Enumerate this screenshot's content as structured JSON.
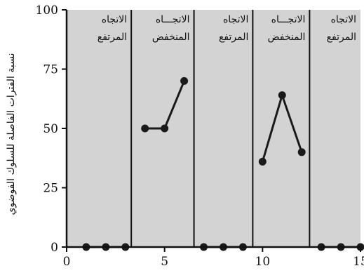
{
  "chart_data": {
    "type": "line",
    "ylabel": "نسبة الفترات الفاصلة للسلوك الفوضوي",
    "xlabel": "",
    "xlim": [
      0,
      15
    ],
    "ylim": [
      0,
      100
    ],
    "x_ticks": [
      0,
      5,
      10,
      15
    ],
    "y_ticks": [
      0,
      25,
      50,
      75,
      100
    ],
    "background_color": "#d3d3d3",
    "line_color": "#1a1a1a",
    "grid": false,
    "phase_boundaries": [
      3.3,
      6.5,
      9.5,
      12.4
    ],
    "phases": [
      {
        "label_line1": "الاتجاه",
        "label_line2": "المرتفع",
        "x_start": 0,
        "x_end": 3.3
      },
      {
        "label_line1": "الاتجـــاه",
        "label_line2": "المنخفض",
        "x_start": 3.3,
        "x_end": 6.5
      },
      {
        "label_line1": "الاتجاه",
        "label_line2": "المرتفع",
        "x_start": 6.5,
        "x_end": 9.5
      },
      {
        "label_line1": "الاتجـــاه",
        "label_line2": "المنخفض",
        "x_start": 9.5,
        "x_end": 12.4
      },
      {
        "label_line1": "الاتجاه",
        "label_line2": "المرتفع",
        "x_start": 12.4,
        "x_end": 15
      }
    ],
    "segments": [
      {
        "x": [
          1,
          2,
          3
        ],
        "y": [
          0,
          0,
          0
        ]
      },
      {
        "x": [
          4,
          5,
          6
        ],
        "y": [
          50,
          50,
          70
        ]
      },
      {
        "x": [
          7,
          8,
          9
        ],
        "y": [
          0,
          0,
          0
        ]
      },
      {
        "x": [
          10,
          11,
          12
        ],
        "y": [
          36,
          64,
          40
        ]
      },
      {
        "x": [
          13,
          14,
          15
        ],
        "y": [
          0,
          0,
          0
        ]
      }
    ]
  }
}
